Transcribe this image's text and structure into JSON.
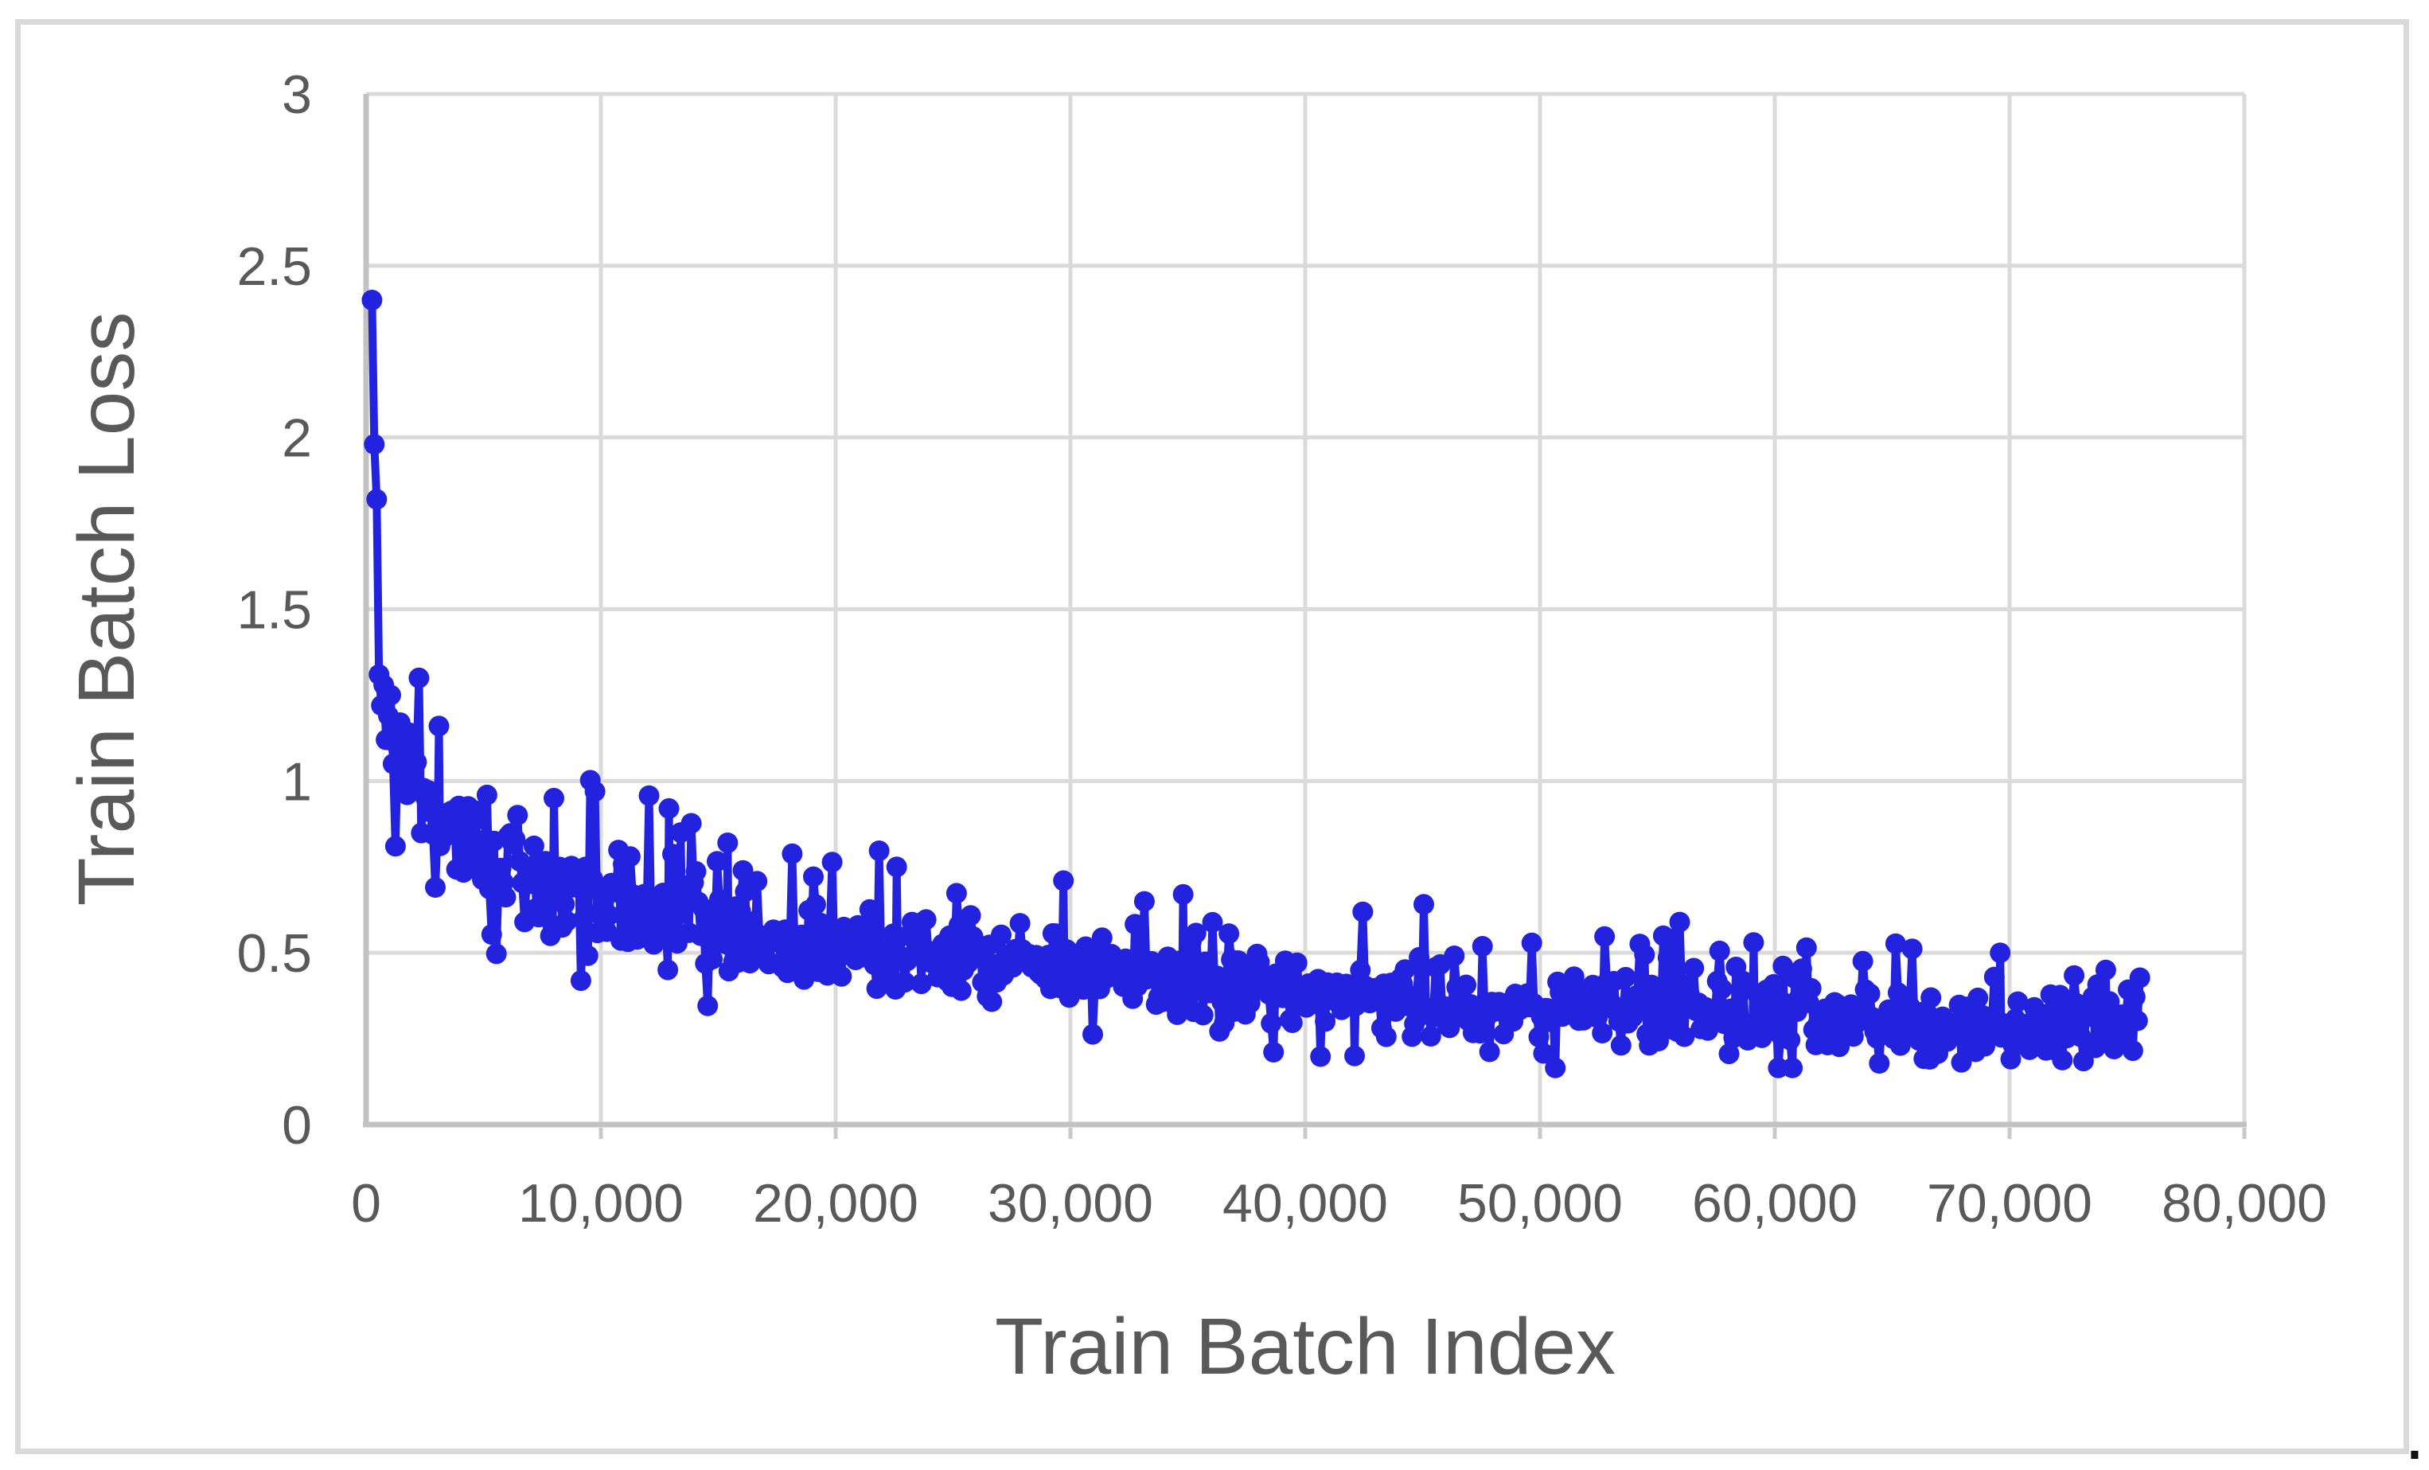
{
  "figure": {
    "kind": "training-loss-curve-figure",
    "border": true
  },
  "caption": {
    "text": "."
  },
  "colors": {
    "series_blue": "#2323df",
    "gridline": "#dadada",
    "axis_line": "#c2c2c2",
    "tick_mark": "#c9c9c9",
    "tick_text": "#595959",
    "axis_title_text": "#595959",
    "figure_border": "#d9d9d9",
    "caption_dot": "#111111",
    "background": "#ffffff"
  },
  "chart_data": {
    "type": "scatter",
    "title": "",
    "xlabel": "Train Batch Index",
    "ylabel": "Train Batch Loss",
    "grid": true,
    "legend": false,
    "x_axis": {
      "min": 0,
      "max": 80000,
      "tick_step": 10000,
      "tick_labels": [
        "0",
        "10,000",
        "20,000",
        "30,000",
        "40,000",
        "50,000",
        "60,000",
        "70,000",
        "80,000"
      ]
    },
    "y_axis": {
      "min": 0,
      "max": 3,
      "tick_step": 0.5,
      "tick_labels": [
        "0",
        "0.5",
        "1",
        "1.5",
        "2",
        "2.5",
        "3"
      ]
    },
    "x_range_of_data": [
      250,
      75600
    ],
    "series": [
      {
        "name": "Train Batch Loss",
        "marker": "circle",
        "connect_lines": true,
        "lead_points": [
          [
            250,
            2.4
          ],
          [
            350,
            1.98
          ],
          [
            450,
            1.82
          ],
          [
            550,
            1.31
          ],
          [
            650,
            1.22
          ],
          [
            750,
            1.28
          ],
          [
            850,
            1.12
          ],
          [
            950,
            1.19
          ],
          [
            1050,
            1.25
          ],
          [
            1150,
            1.05
          ],
          [
            1250,
            0.81
          ],
          [
            1350,
            1.1
          ],
          [
            1450,
            1.17
          ],
          [
            1550,
            1.01
          ],
          [
            1650,
            1.08
          ],
          [
            1750,
            0.96
          ],
          [
            1850,
            1.14
          ],
          [
            1950,
            0.99
          ],
          [
            2050,
            1.04
          ]
        ],
        "outlier_points": [
          [
            3100,
            1.16
          ],
          [
            8000,
            0.95
          ],
          [
            12900,
            0.92
          ],
          [
            13400,
            0.85
          ],
          [
            15400,
            0.82
          ],
          [
            22600,
            0.75
          ],
          [
            29700,
            0.71
          ],
          [
            34800,
            0.67
          ],
          [
            42100,
            0.2
          ],
          [
            55600,
            0.54
          ],
          [
            59100,
            0.53
          ],
          [
            66600,
            0.19
          ],
          [
            69600,
            0.5
          ],
          [
            74100,
            0.45
          ]
        ],
        "generated_cloud": {
          "description": "Dense noisy decaying band sampled every ~100 batches; mean(x) = base + sum(a*exp(-x/tau)); std(x) = sigma_base + sigma_amp*exp(-x/sigma_tau); occasional upward spikes and downward dips.",
          "x_start": 2150,
          "x_end": 75600,
          "x_step": 100,
          "base": 0.24,
          "exp_components": [
            [
              0.57,
              29000
            ],
            [
              0.52,
              2500
            ]
          ],
          "sigma_base": 0.055,
          "sigma_amp": 0.04,
          "sigma_tau": 15000,
          "spike_probability": 0.04,
          "dip_probability": 0.015,
          "clamp_min": 0.165,
          "clamp_max": 1.3,
          "seed": 12
        },
        "approx_mean_by_x": {
          "2500": 1.0,
          "5000": 0.79,
          "10000": 0.65,
          "20000": 0.53,
          "30000": 0.44,
          "40000": 0.38,
          "50000": 0.33,
          "60000": 0.3,
          "70000": 0.28,
          "75600": 0.27
        }
      }
    ]
  }
}
